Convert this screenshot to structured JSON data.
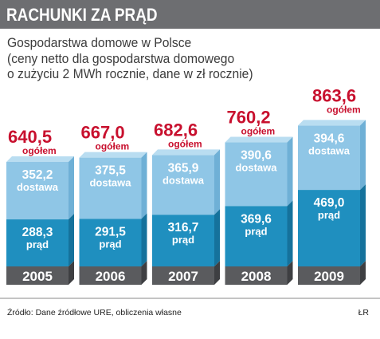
{
  "header": {
    "title": "RACHUNKI ZA PRĄD"
  },
  "subtitle_lines": [
    "Gospodarstwa domowe w Polsce",
    "(ceny netto dla gospodarstwa domowego",
    "o zużyciu 2 MWh rocznie, dane w zł rocznie)"
  ],
  "footer": {
    "source": "Źródło: Dane źródłowe URE, obliczenia własne",
    "credit": "ŁR"
  },
  "colors": {
    "header_bg": "#6d6e71",
    "total_label": "#c8102e",
    "prad_segment": "#1f8fbf",
    "dostawa_segment": "#8fc6e6",
    "base": "#5a5b5e"
  },
  "chart_data": {
    "type": "bar",
    "stacked": true,
    "categories": [
      "2005",
      "2006",
      "2007",
      "2008",
      "2009"
    ],
    "series": [
      {
        "name": "prąd",
        "values": [
          288.3,
          291.5,
          316.7,
          369.6,
          469.0
        ],
        "labels": [
          "288,3",
          "291,5",
          "316,7",
          "369,6",
          "469,0"
        ]
      },
      {
        "name": "dostawa",
        "values": [
          352.2,
          375.5,
          365.9,
          390.6,
          394.6
        ],
        "labels": [
          "352,2",
          "375,5",
          "365,9",
          "390,6",
          "394,6"
        ]
      }
    ],
    "totals": [
      640.5,
      667.0,
      682.6,
      760.2,
      863.6
    ],
    "total_labels": [
      "640,5",
      "667,0",
      "682,6",
      "760,2",
      "863,6"
    ],
    "total_caption": "ogółem",
    "title": "RACHUNKI ZA PRĄD",
    "ylim": [
      0,
      900
    ],
    "grid": false,
    "legend": "none"
  }
}
